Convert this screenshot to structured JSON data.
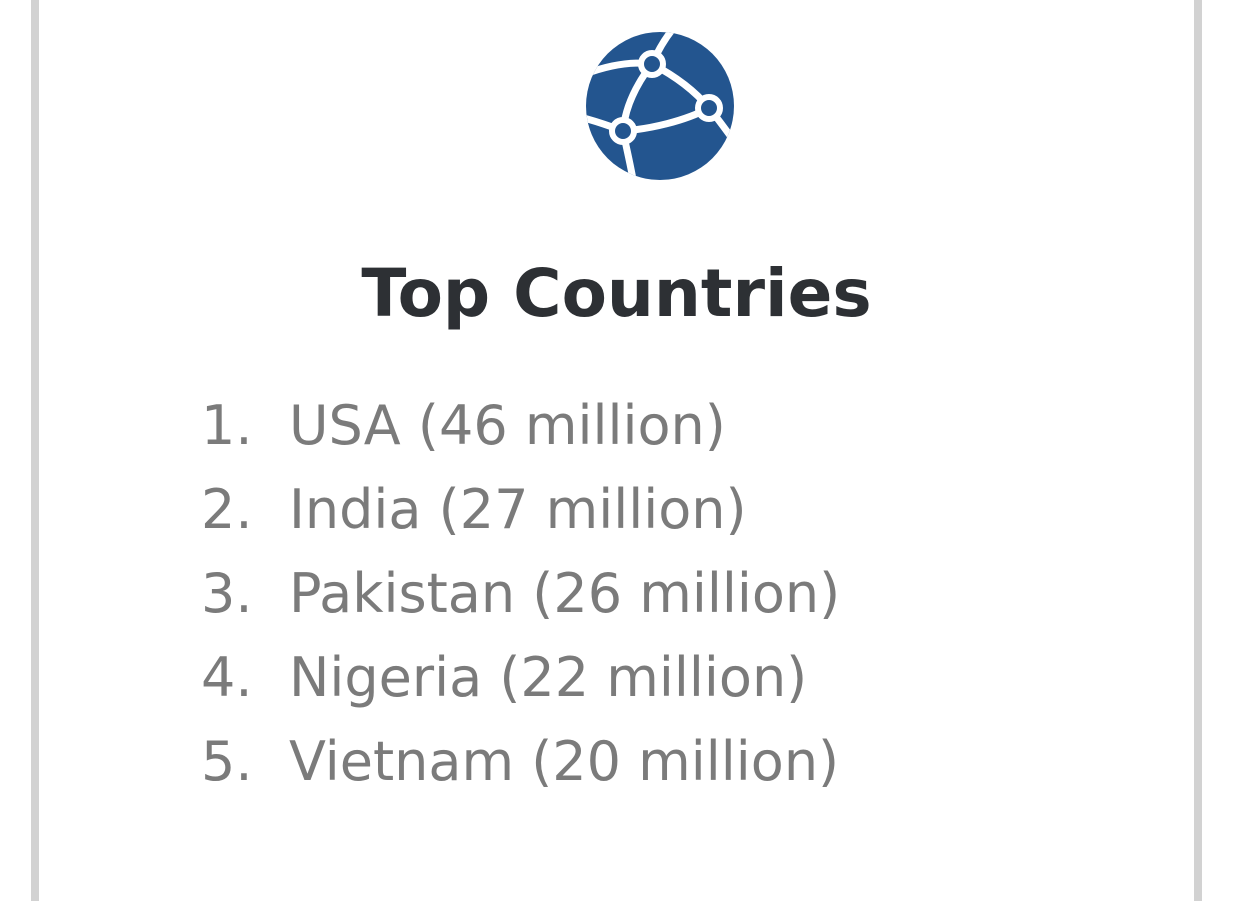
{
  "globe": {
    "icon": "globe-network-icon",
    "color": "#23558f"
  },
  "title": "Top Countries",
  "countries": [
    {
      "number": "1.",
      "text": "USA (46 million)"
    },
    {
      "number": "2.",
      "text": "India (27 million)"
    },
    {
      "number": "3.",
      "text": "Pakistan (26 million)"
    },
    {
      "number": "4.",
      "text": "Nigeria (22 million)"
    },
    {
      "number": "5.",
      "text": "Vietnam (20 million)"
    }
  ],
  "colors": {
    "title": "#2d3034",
    "list_text": "#7b7b7b",
    "border": "#d2d2d2"
  }
}
